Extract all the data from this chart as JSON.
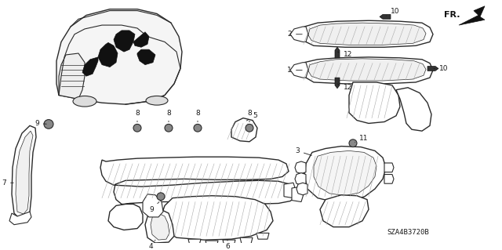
{
  "background_color": "#ffffff",
  "line_color": "#2a2a2a",
  "figsize": [
    6.4,
    3.19
  ],
  "dpi": 100,
  "diagram_code": "SZA4B3720B",
  "diagram_text_color": "#1a1a1a",
  "label_fontsize": 6.5,
  "code_fontsize": 6.5
}
